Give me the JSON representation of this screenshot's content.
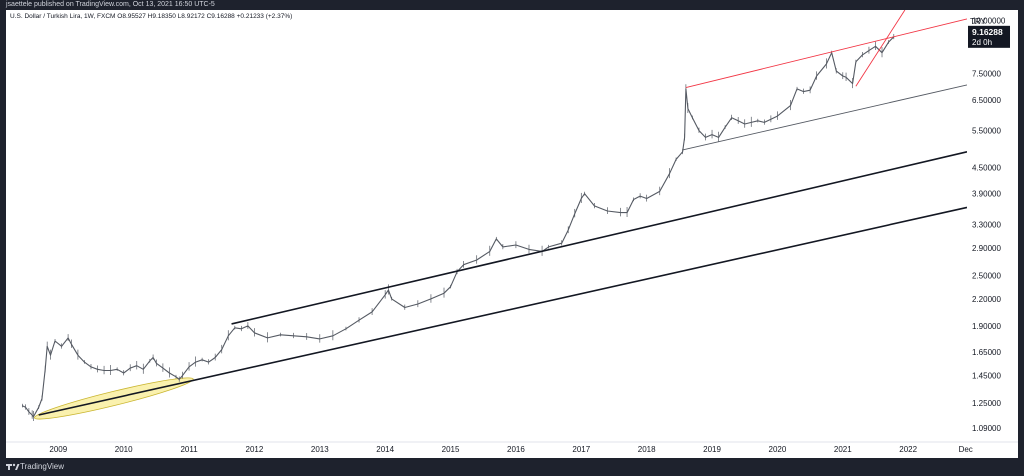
{
  "header": {
    "published_text": "jsaettele published on TradingView.com, Oct 13, 2021 16:50 UTC-5"
  },
  "symbol": {
    "name": "U.S. Dollar / Turkish Lira, 1W, FXCM",
    "open": "O8.95527",
    "high": "H9.18350",
    "low": "L8.92172",
    "close": "C9.16288",
    "change": "+0.21233 (+2.37%)"
  },
  "price_tag": {
    "currency": "TRY",
    "price": "9.16288",
    "countdown": "2d 0h"
  },
  "footer": {
    "brand": "TradingView"
  },
  "chart_data": {
    "type": "line",
    "scale": "log",
    "title": "",
    "xlabel": "",
    "ylabel": "",
    "x_ticks": [
      "2009",
      "2010",
      "2011",
      "2012",
      "2013",
      "2014",
      "2015",
      "2016",
      "2017",
      "2018",
      "2019",
      "2020",
      "2021",
      "2022",
      "Dec"
    ],
    "y_ticks": [
      "10.00000",
      "7.50000",
      "6.50000",
      "5.50000",
      "4.50000",
      "3.90000",
      "3.30000",
      "2.90000",
      "2.50000",
      "2.20000",
      "1.90000",
      "1.65000",
      "1.45000",
      "1.25000",
      "1.09000"
    ],
    "xlim": [
      2008.2,
      2022.9
    ],
    "ylim": [
      1.01,
      10.6
    ],
    "colors": {
      "price": "#555a63",
      "red_line": "#f23645",
      "ellipse": "#f5e56b",
      "current": "#131722"
    },
    "series": [
      {
        "values": [
          [
            2008.45,
            1.23
          ],
          [
            2008.5,
            1.22
          ],
          [
            2008.55,
            1.19
          ],
          [
            2008.6,
            1.17
          ],
          [
            2008.62,
            1.16
          ],
          [
            2008.7,
            1.22
          ],
          [
            2008.75,
            1.28
          ],
          [
            2008.8,
            1.5
          ],
          [
            2008.83,
            1.7
          ],
          [
            2008.88,
            1.62
          ],
          [
            2008.95,
            1.75
          ],
          [
            2009.05,
            1.7
          ],
          [
            2009.15,
            1.78
          ],
          [
            2009.2,
            1.72
          ],
          [
            2009.3,
            1.62
          ],
          [
            2009.4,
            1.56
          ],
          [
            2009.5,
            1.52
          ],
          [
            2009.6,
            1.5
          ],
          [
            2009.7,
            1.49
          ],
          [
            2009.8,
            1.49
          ],
          [
            2009.9,
            1.5
          ],
          [
            2010.0,
            1.47
          ],
          [
            2010.1,
            1.51
          ],
          [
            2010.2,
            1.53
          ],
          [
            2010.3,
            1.5
          ],
          [
            2010.4,
            1.57
          ],
          [
            2010.45,
            1.6
          ],
          [
            2010.5,
            1.55
          ],
          [
            2010.6,
            1.51
          ],
          [
            2010.7,
            1.47
          ],
          [
            2010.8,
            1.44
          ],
          [
            2010.85,
            1.42
          ],
          [
            2010.9,
            1.45
          ],
          [
            2011.0,
            1.52
          ],
          [
            2011.1,
            1.56
          ],
          [
            2011.2,
            1.58
          ],
          [
            2011.3,
            1.56
          ],
          [
            2011.4,
            1.6
          ],
          [
            2011.5,
            1.67
          ],
          [
            2011.6,
            1.8
          ],
          [
            2011.7,
            1.88
          ],
          [
            2011.8,
            1.87
          ],
          [
            2011.9,
            1.9
          ],
          [
            2012.0,
            1.83
          ],
          [
            2012.2,
            1.78
          ],
          [
            2012.4,
            1.81
          ],
          [
            2012.6,
            1.8
          ],
          [
            2012.8,
            1.79
          ],
          [
            2013.0,
            1.77
          ],
          [
            2013.2,
            1.8
          ],
          [
            2013.4,
            1.87
          ],
          [
            2013.6,
            1.96
          ],
          [
            2013.8,
            2.05
          ],
          [
            2014.0,
            2.25
          ],
          [
            2014.05,
            2.31
          ],
          [
            2014.1,
            2.2
          ],
          [
            2014.3,
            2.1
          ],
          [
            2014.5,
            2.14
          ],
          [
            2014.7,
            2.2
          ],
          [
            2014.9,
            2.27
          ],
          [
            2015.0,
            2.35
          ],
          [
            2015.1,
            2.55
          ],
          [
            2015.2,
            2.65
          ],
          [
            2015.4,
            2.72
          ],
          [
            2015.6,
            2.85
          ],
          [
            2015.7,
            3.05
          ],
          [
            2015.8,
            2.92
          ],
          [
            2016.0,
            2.95
          ],
          [
            2016.2,
            2.88
          ],
          [
            2016.4,
            2.85
          ],
          [
            2016.5,
            2.92
          ],
          [
            2016.7,
            2.98
          ],
          [
            2016.8,
            3.2
          ],
          [
            2016.9,
            3.5
          ],
          [
            2017.0,
            3.8
          ],
          [
            2017.05,
            3.9
          ],
          [
            2017.2,
            3.65
          ],
          [
            2017.4,
            3.55
          ],
          [
            2017.6,
            3.52
          ],
          [
            2017.7,
            3.52
          ],
          [
            2017.8,
            3.78
          ],
          [
            2017.9,
            3.85
          ],
          [
            2018.0,
            3.8
          ],
          [
            2018.2,
            3.95
          ],
          [
            2018.35,
            4.35
          ],
          [
            2018.45,
            4.7
          ],
          [
            2018.55,
            4.9
          ],
          [
            2018.58,
            5.3
          ],
          [
            2018.6,
            6.9
          ],
          [
            2018.63,
            6.2
          ],
          [
            2018.7,
            5.9
          ],
          [
            2018.8,
            5.5
          ],
          [
            2018.9,
            5.3
          ],
          [
            2019.0,
            5.38
          ],
          [
            2019.1,
            5.3
          ],
          [
            2019.2,
            5.6
          ],
          [
            2019.3,
            5.9
          ],
          [
            2019.4,
            5.8
          ],
          [
            2019.5,
            5.7
          ],
          [
            2019.6,
            5.75
          ],
          [
            2019.7,
            5.8
          ],
          [
            2019.8,
            5.75
          ],
          [
            2019.9,
            5.85
          ],
          [
            2020.0,
            5.95
          ],
          [
            2020.2,
            6.3
          ],
          [
            2020.3,
            6.9
          ],
          [
            2020.4,
            6.8
          ],
          [
            2020.5,
            6.85
          ],
          [
            2020.6,
            7.4
          ],
          [
            2020.75,
            7.9
          ],
          [
            2020.83,
            8.4
          ],
          [
            2020.9,
            7.6
          ],
          [
            2021.0,
            7.4
          ],
          [
            2021.05,
            7.35
          ],
          [
            2021.15,
            7.1
          ],
          [
            2021.2,
            8.0
          ],
          [
            2021.3,
            8.3
          ],
          [
            2021.4,
            8.5
          ],
          [
            2021.5,
            8.7
          ],
          [
            2021.6,
            8.4
          ],
          [
            2021.7,
            8.9
          ],
          [
            2021.78,
            9.16
          ]
        ]
      }
    ],
    "annotations": [
      {
        "type": "trendline",
        "color": "#131722",
        "points": [
          [
            2011.65,
            1.92
          ],
          [
            2022.9,
            4.9
          ]
        ]
      },
      {
        "type": "trendline",
        "color": "#131722",
        "points": [
          [
            2008.7,
            1.17
          ],
          [
            2022.9,
            3.62
          ]
        ]
      },
      {
        "type": "trendline",
        "color": "#555a63",
        "points": [
          [
            2018.55,
            4.95
          ],
          [
            2022.9,
            7.05
          ]
        ]
      },
      {
        "type": "trendline",
        "color": "#f23645",
        "points": [
          [
            2018.6,
            6.95
          ],
          [
            2022.9,
            10.1
          ]
        ]
      },
      {
        "type": "trendline",
        "color": "#f23645",
        "points": [
          [
            2021.2,
            7.0
          ],
          [
            2021.95,
            10.6
          ]
        ]
      },
      {
        "type": "ellipse",
        "color": "#f5e56b",
        "center": [
          2009.85,
          1.28
        ],
        "rx_years": 1.25
      }
    ],
    "grid": false,
    "legend": "none"
  }
}
